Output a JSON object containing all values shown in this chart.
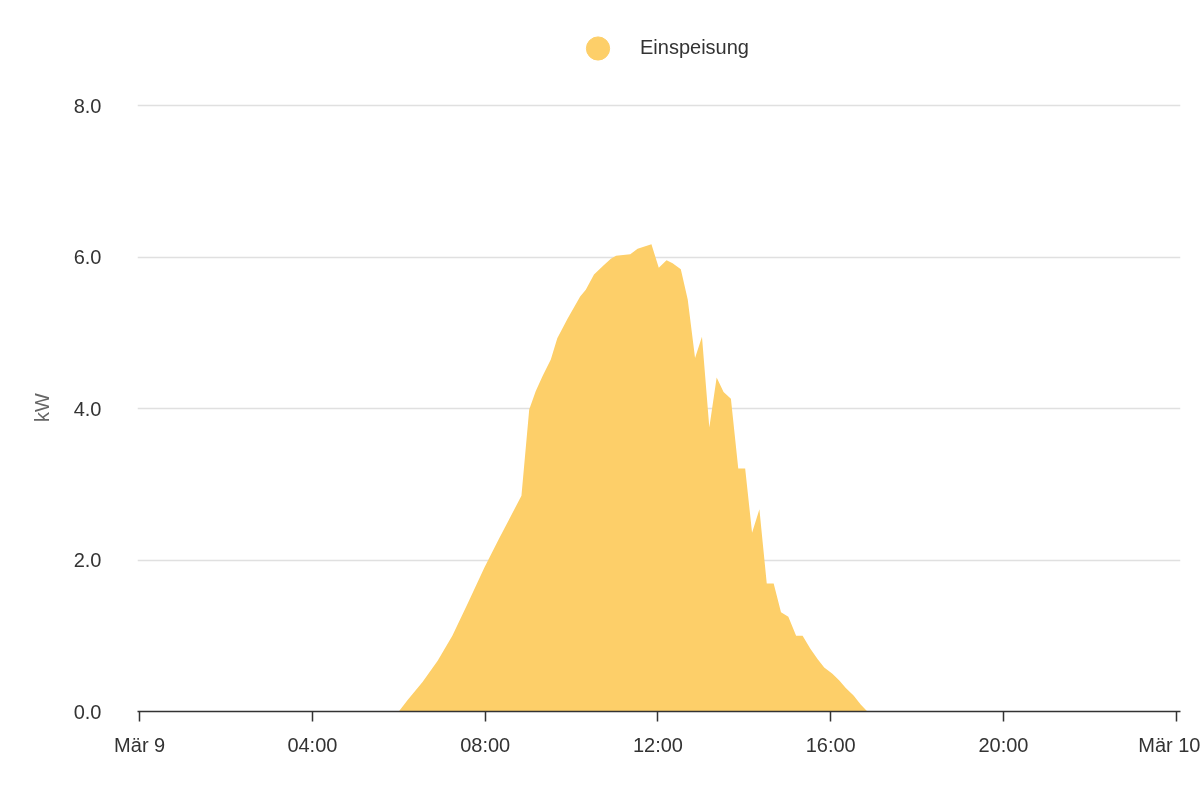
{
  "chart_data": {
    "type": "area",
    "legend": "top",
    "grid": "y",
    "ylabel": "kW",
    "xlim": [
      -0.05,
      24.1
    ],
    "ylim": [
      0,
      8.03
    ],
    "xticks": [
      {
        "value": 0,
        "label": "Mär 9"
      },
      {
        "value": 4,
        "label": "04:00"
      },
      {
        "value": 8,
        "label": "08:00"
      },
      {
        "value": 12,
        "label": "12:00"
      },
      {
        "value": 16,
        "label": "16:00"
      },
      {
        "value": 20,
        "label": "20:00"
      },
      {
        "value": 24,
        "label": "Mär 10"
      }
    ],
    "yticks": [
      {
        "value": 0,
        "label": "0.0"
      },
      {
        "value": 2,
        "label": "2.0"
      },
      {
        "value": 4,
        "label": "4.0"
      },
      {
        "value": 6,
        "label": "6.0"
      },
      {
        "value": 8,
        "label": "8.0"
      }
    ],
    "x": [
      6.0,
      6.2,
      6.55,
      6.9,
      7.24,
      7.59,
      7.98,
      8.32,
      8.84,
      9.02,
      9.17,
      9.33,
      9.52,
      9.67,
      9.91,
      10.2,
      10.33,
      10.52,
      10.72,
      10.91,
      11.03,
      11.36,
      11.53,
      11.85,
      12.02,
      12.2,
      12.34,
      12.53,
      12.69,
      12.86,
      13.02,
      13.19,
      13.36,
      13.52,
      13.69,
      13.86,
      14.02,
      14.18,
      14.35,
      14.52,
      14.68,
      14.85,
      15.02,
      15.2,
      15.35,
      15.53,
      15.7,
      15.85,
      16.04,
      16.2,
      16.35,
      16.53,
      16.7,
      16.85
    ],
    "series": [
      {
        "name": "Einspeisung",
        "color": "#fdcf69",
        "values": [
          0,
          0.15,
          0.39,
          0.67,
          1.0,
          1.42,
          1.9,
          2.28,
          2.85,
          3.99,
          4.23,
          4.43,
          4.65,
          4.93,
          5.19,
          5.48,
          5.57,
          5.77,
          5.88,
          5.98,
          6.02,
          6.04,
          6.11,
          6.17,
          5.86,
          5.96,
          5.92,
          5.84,
          5.44,
          4.67,
          4.95,
          3.75,
          4.41,
          4.22,
          4.13,
          3.21,
          3.21,
          2.36,
          2.67,
          1.69,
          1.69,
          1.31,
          1.25,
          1.0,
          1.0,
          0.83,
          0.69,
          0.58,
          0.5,
          0.41,
          0.31,
          0.21,
          0.09,
          0
        ]
      }
    ]
  }
}
